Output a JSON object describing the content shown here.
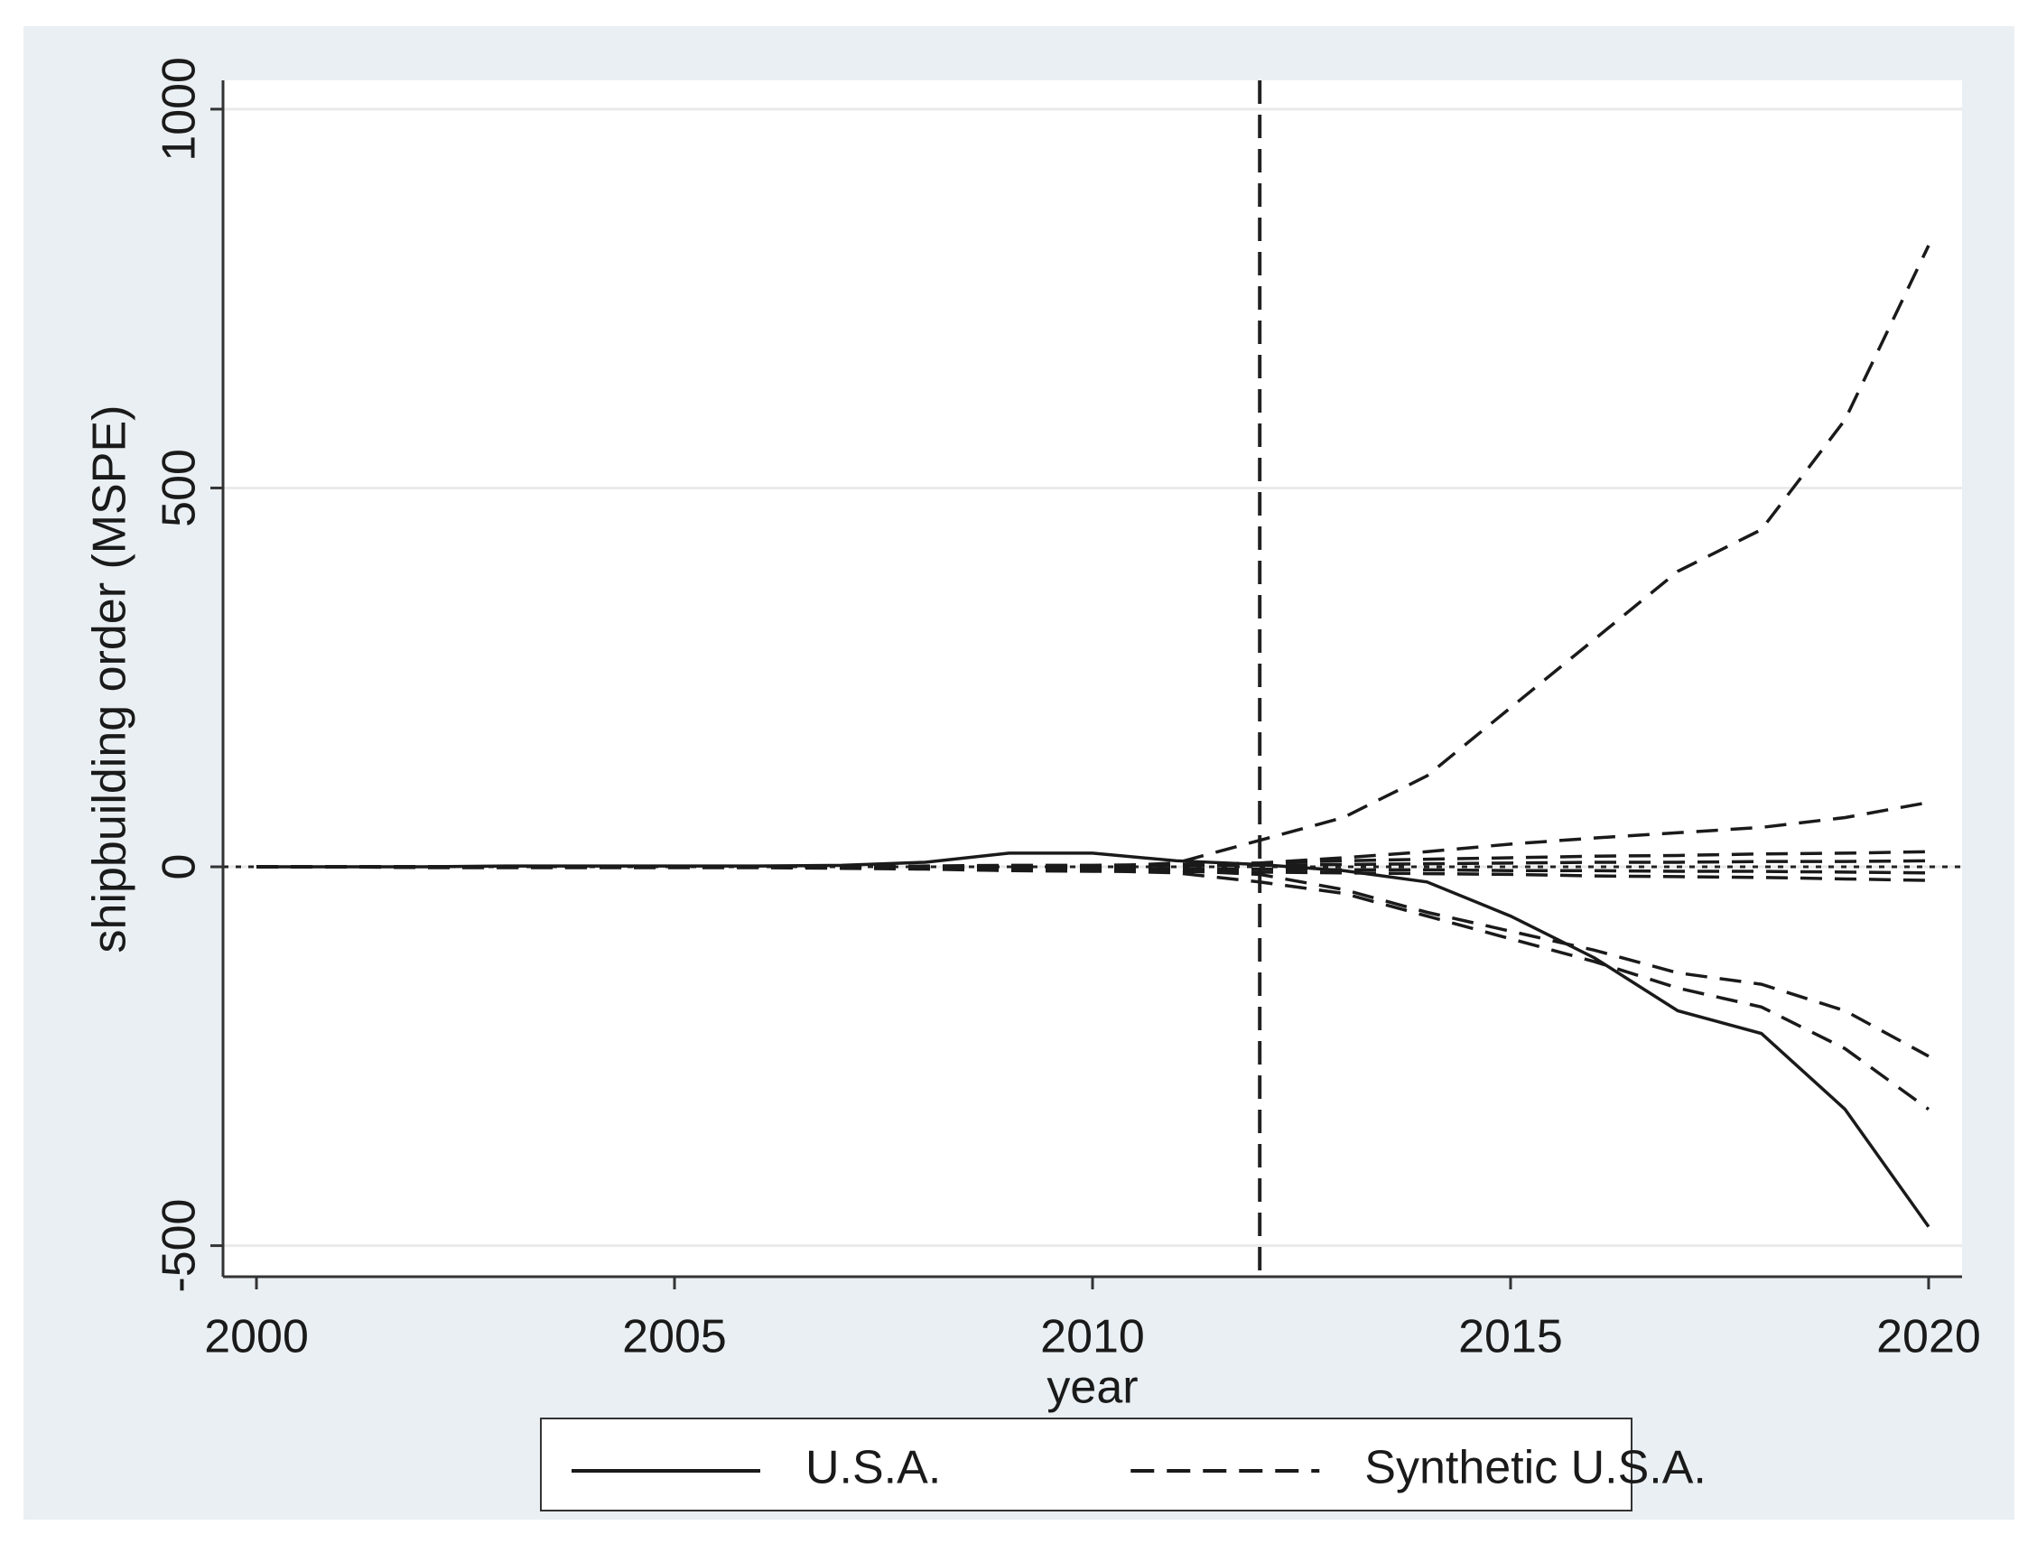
{
  "chart_data": {
    "type": "line",
    "xlabel": "year",
    "ylabel": "shipbuilding order (MSPE)",
    "x": [
      2000,
      2001,
      2002,
      2003,
      2004,
      2005,
      2006,
      2007,
      2008,
      2009,
      2010,
      2011,
      2012,
      2013,
      2014,
      2015,
      2016,
      2017,
      2018,
      2019,
      2020
    ],
    "series": [
      {
        "name": "U.S.A.",
        "color": "#1a1a1a",
        "dash": false,
        "values": [
          0,
          0,
          0,
          1,
          1,
          1,
          1,
          2,
          6,
          18,
          18,
          8,
          3,
          -5,
          -20,
          -65,
          -120,
          -190,
          -220,
          -320,
          -475
        ]
      },
      {
        "name": "Synthetic U.S.A.",
        "color": "#1a1a1a",
        "dash": true,
        "values": [
          0,
          0,
          0,
          0,
          0,
          0,
          0,
          0,
          0,
          0,
          0,
          5,
          35,
          65,
          120,
          210,
          300,
          390,
          445,
          590,
          820
        ]
      },
      {
        "color": "#1a1a1a",
        "dash": true,
        "values": [
          0,
          0,
          0,
          0,
          0,
          0,
          0,
          0,
          0,
          0,
          0,
          2,
          5,
          12,
          20,
          30,
          38,
          45,
          52,
          65,
          85
        ]
      },
      {
        "color": "#1a1a1a",
        "dash": true,
        "values": [
          0,
          0,
          -1,
          -1,
          -1,
          -1,
          -1,
          -1,
          -2,
          -3,
          -3,
          -5,
          -10,
          -30,
          -60,
          -85,
          -110,
          -140,
          -155,
          -190,
          -250
        ]
      },
      {
        "color": "#1a1a1a",
        "dash": true,
        "values": [
          0,
          0,
          -1,
          -1,
          -1,
          -1,
          -1,
          -2,
          -3,
          -5,
          -5,
          -8,
          -20,
          -35,
          -65,
          -95,
          -125,
          -160,
          -185,
          -240,
          -320
        ]
      },
      {
        "color": "#1a1a1a",
        "dash": true,
        "values": [
          0,
          0,
          0,
          0,
          0,
          0,
          0,
          0,
          1,
          2,
          2,
          3,
          5,
          8,
          10,
          12,
          14,
          15,
          17,
          18,
          20
        ]
      },
      {
        "color": "#1a1a1a",
        "dash": true,
        "values": [
          0,
          0,
          0,
          0,
          0,
          0,
          0,
          0,
          0,
          1,
          1,
          1,
          2,
          3,
          4,
          5,
          6,
          6,
          7,
          7,
          8
        ]
      },
      {
        "color": "#1a1a1a",
        "dash": true,
        "values": [
          0,
          0,
          0,
          0,
          0,
          0,
          0,
          0,
          -1,
          -2,
          -3,
          -3,
          -3,
          -4,
          -4,
          -5,
          -5,
          -6,
          -6,
          -7,
          -8
        ]
      },
      {
        "color": "#1a1a1a",
        "dash": true,
        "values": [
          0,
          0,
          0,
          0,
          0,
          0,
          0,
          -1,
          -2,
          -5,
          -6,
          -6,
          -7,
          -8,
          -9,
          -10,
          -12,
          -13,
          -14,
          -16,
          -18
        ]
      }
    ],
    "xlim": [
      1999.6,
      2020.4
    ],
    "ylim": [
      -541,
      1038
    ],
    "xticks": [
      2000,
      2005,
      2010,
      2015,
      2020
    ],
    "yticks": [
      -500,
      0,
      500,
      1000
    ],
    "xline": 2012,
    "yline": 0,
    "grid": true
  }
}
